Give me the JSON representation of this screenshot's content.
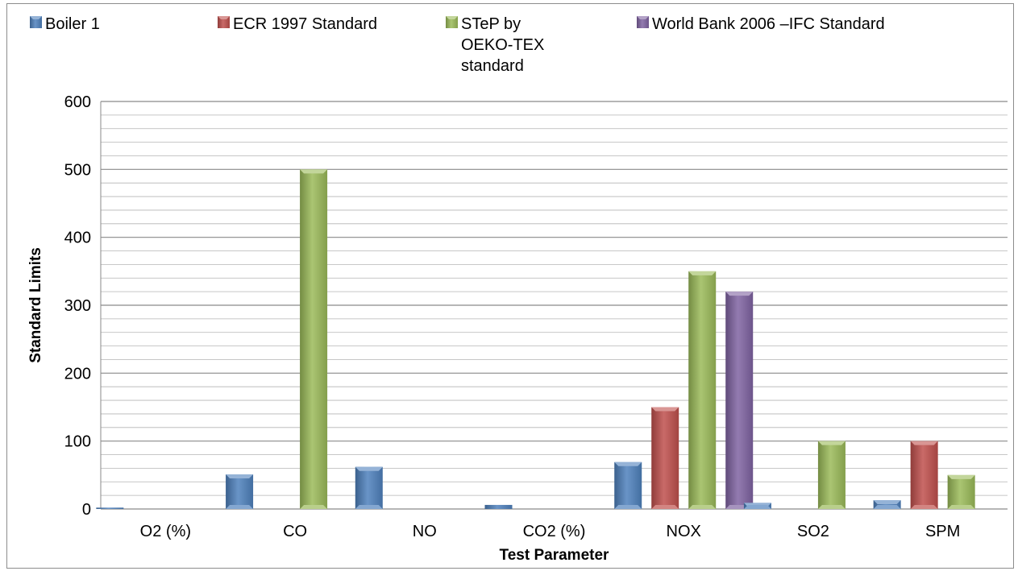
{
  "chart_data": {
    "type": "bar",
    "title": "",
    "xlabel": "Test Parameter",
    "ylabel": "Standard Limits",
    "ylim": [
      0,
      600
    ],
    "yticks": [
      0,
      100,
      200,
      300,
      400,
      500,
      600
    ],
    "minor_gridline_step": 20,
    "grid": true,
    "legend_position": "top",
    "categories": [
      "O2 (%)",
      "CO",
      "NO",
      "CO2 (%)",
      "NOX",
      "SO2",
      "SPM"
    ],
    "series": [
      {
        "name": "Boiler 1",
        "legend_lines": [
          "Boiler 1"
        ],
        "color": "#4f81bd",
        "values": [
          2,
          51,
          62,
          6,
          69,
          9,
          13
        ]
      },
      {
        "name": "ECR 1997 Standard",
        "legend_lines": [
          "ECR 1997 Standard"
        ],
        "color": "#c0504d",
        "values": [
          0,
          0,
          0,
          0,
          150,
          0,
          100
        ]
      },
      {
        "name": "STeP by OEKO-TEX standard",
        "legend_lines": [
          "STeP by",
          "OEKO-TEX",
          "standard"
        ],
        "color": "#9bbb59",
        "values": [
          0,
          500,
          0,
          0,
          350,
          100,
          50
        ]
      },
      {
        "name": "World Bank 2006 –IFC Standard",
        "legend_lines": [
          "World Bank 2006  –IFC Standard"
        ],
        "color": "#8064a2",
        "values": [
          0,
          0,
          0,
          0,
          320,
          0,
          0
        ]
      }
    ]
  }
}
